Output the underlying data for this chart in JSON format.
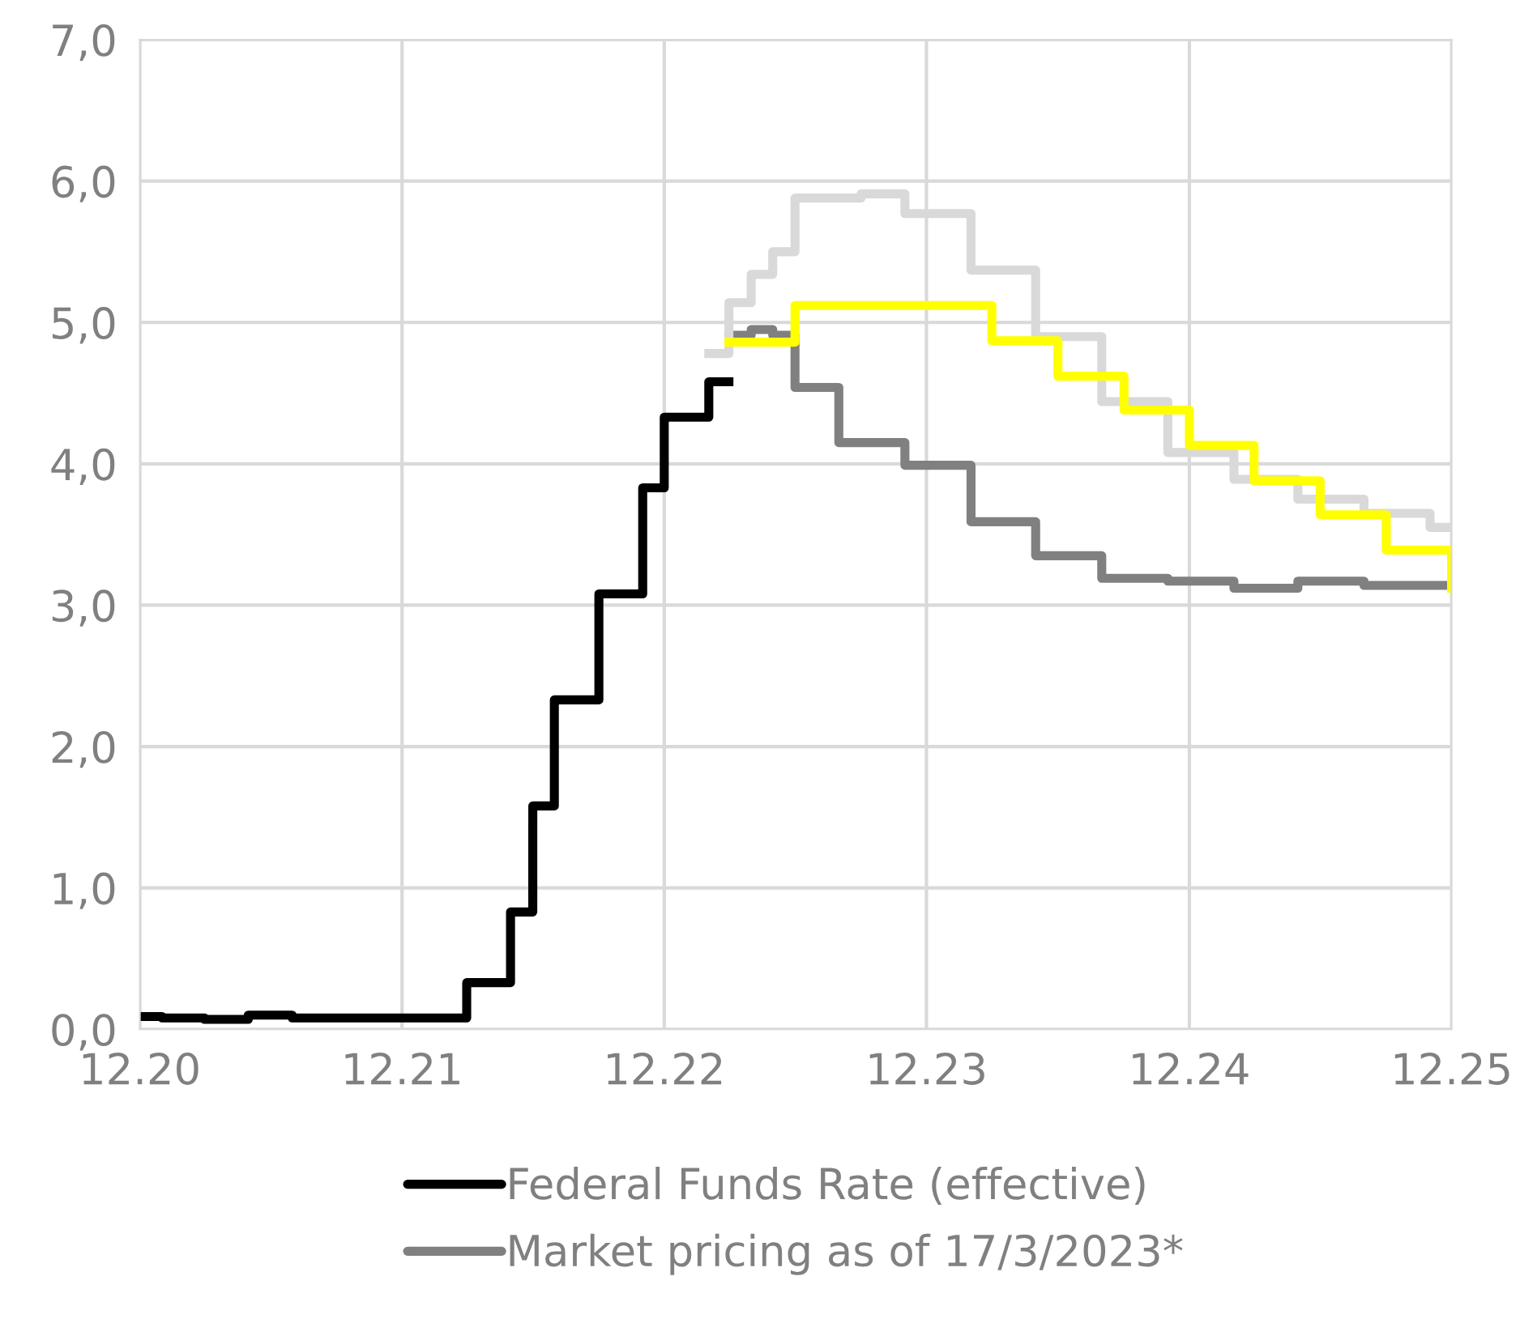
{
  "chart_data": {
    "type": "step",
    "xlim": [
      "2020-12-01",
      "2025-12-01"
    ],
    "ylim": [
      0,
      7
    ],
    "xticks": [
      {
        "value": "2020-12-01",
        "label": "12.20"
      },
      {
        "value": "2021-12-01",
        "label": "12.21"
      },
      {
        "value": "2022-12-01",
        "label": "12.22"
      },
      {
        "value": "2023-12-01",
        "label": "12.23"
      },
      {
        "value": "2024-12-01",
        "label": "12.24"
      },
      {
        "value": "2025-12-01",
        "label": "12.25"
      }
    ],
    "yticks": [
      {
        "value": 0,
        "label": "0,0"
      },
      {
        "value": 1,
        "label": "1,0"
      },
      {
        "value": 2,
        "label": "2,0"
      },
      {
        "value": 3,
        "label": "3,0"
      },
      {
        "value": 4,
        "label": "4,0"
      },
      {
        "value": 5,
        "label": "5,0"
      },
      {
        "value": 6,
        "label": "6,0"
      },
      {
        "value": 7,
        "label": "7,0"
      }
    ],
    "grid": true,
    "legend": "bottom",
    "line_style": "solid",
    "marker": "none",
    "series": [
      {
        "name": "Federal Funds Rate (effective)",
        "color": "#000000",
        "x": [
          "2020-12",
          "2021-01",
          "2021-03",
          "2021-05",
          "2021-07",
          "2022-03",
          "2022-05",
          "2022-06",
          "2022-07",
          "2022-09",
          "2022-11",
          "2022-12",
          "2023-02",
          "2023-03"
        ],
        "values": [
          0.09,
          0.08,
          0.07,
          0.1,
          0.08,
          0.33,
          0.83,
          1.58,
          2.33,
          3.08,
          3.83,
          4.33,
          4.58,
          4.58
        ]
      },
      {
        "name": "Market pricing as of 17/3/2023*",
        "color": "#808080",
        "x": [
          "2023-03",
          "2023-04",
          "2023-05",
          "2023-06",
          "2023-08",
          "2023-11",
          "2024-02",
          "2024-05",
          "2024-08",
          "2024-11",
          "2025-02",
          "2025-05",
          "2025-08",
          "2025-12"
        ],
        "values": [
          4.91,
          4.95,
          4.91,
          4.54,
          4.15,
          3.99,
          3.59,
          3.35,
          3.19,
          3.17,
          3.12,
          3.17,
          3.14,
          3.12
        ]
      },
      {
        "color": "#d9d9d9",
        "x": [
          "2023-02",
          "2023-03",
          "2023-04",
          "2023-05",
          "2023-06",
          "2023-09",
          "2023-11",
          "2024-02",
          "2024-05",
          "2024-08",
          "2024-11",
          "2025-02",
          "2025-05",
          "2025-08",
          "2025-11",
          "2025-12"
        ],
        "values": [
          4.78,
          5.14,
          5.34,
          5.5,
          5.88,
          5.91,
          5.77,
          5.37,
          4.9,
          4.44,
          4.08,
          3.89,
          3.75,
          3.65,
          3.55,
          3.55
        ]
      },
      {
        "color": "#ffff00",
        "x": [
          "2023-03",
          "2023-06",
          "2024-03",
          "2024-06",
          "2024-09",
          "2024-12",
          "2025-03",
          "2025-06",
          "2025-09",
          "2025-12"
        ],
        "values": [
          4.86,
          5.12,
          4.87,
          4.62,
          4.38,
          4.13,
          3.88,
          3.64,
          3.39,
          3.12
        ]
      }
    ]
  }
}
